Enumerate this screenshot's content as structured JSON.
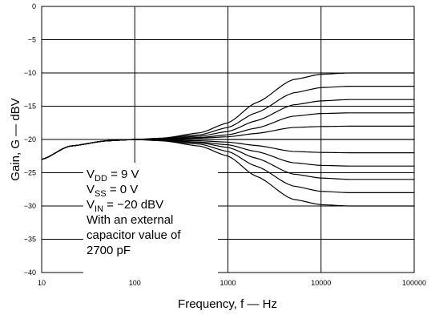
{
  "chart_data": {
    "type": "line",
    "title": "",
    "xlabel": "Frequency, f — Hz",
    "ylabel": "Gain, G — dBV",
    "xscale": "log",
    "xlim": [
      10,
      100000
    ],
    "ylim": [
      -40,
      0
    ],
    "x_ticks": [
      10,
      100,
      1000,
      10000,
      100000
    ],
    "x_tick_labels": [
      "10",
      "100",
      "1000",
      "10000",
      "100000"
    ],
    "y_ticks": [
      0,
      -5,
      -10,
      -15,
      -20,
      -25,
      -30,
      -35,
      -40
    ],
    "y_tick_labels": [
      "0",
      "−5",
      "−10",
      "−15",
      "−20",
      "−25",
      "−30",
      "−35",
      "−40"
    ],
    "grid": true,
    "series": [
      {
        "x": [
          10,
          20,
          50,
          100,
          200,
          500,
          1000,
          2000,
          5000,
          10000,
          20000,
          50000,
          100000
        ],
        "y": [
          -23,
          -21,
          -20.2,
          -20,
          -19.8,
          -19,
          -17.5,
          -14.5,
          -11,
          -10.2,
          -10,
          -10,
          -10
        ]
      },
      {
        "x": [
          10,
          20,
          50,
          100,
          200,
          500,
          1000,
          2000,
          5000,
          10000,
          20000,
          50000,
          100000
        ],
        "y": [
          -23,
          -21,
          -20.2,
          -20,
          -19.8,
          -19.3,
          -18.2,
          -16,
          -13,
          -12.2,
          -12,
          -12,
          -12
        ]
      },
      {
        "x": [
          10,
          20,
          50,
          100,
          200,
          500,
          1000,
          2000,
          5000,
          10000,
          20000,
          50000,
          100000
        ],
        "y": [
          -23,
          -21,
          -20.2,
          -20,
          -19.9,
          -19.5,
          -18.8,
          -17.2,
          -14.8,
          -14.2,
          -14,
          -14,
          -14
        ]
      },
      {
        "x": [
          10,
          20,
          50,
          100,
          200,
          500,
          1000,
          2000,
          5000,
          10000,
          20000,
          50000,
          100000
        ],
        "y": [
          -23,
          -21,
          -20.2,
          -20,
          -19.9,
          -19.7,
          -19.3,
          -18.3,
          -16.5,
          -16.1,
          -16,
          -16,
          -16
        ]
      },
      {
        "x": [
          10,
          20,
          50,
          100,
          200,
          500,
          1000,
          2000,
          5000,
          10000,
          20000,
          50000,
          100000
        ],
        "y": [
          -23,
          -21,
          -20.2,
          -20,
          -19.95,
          -19.8,
          -19.6,
          -19.1,
          -18.2,
          -18.05,
          -18,
          -18,
          -18
        ]
      },
      {
        "x": [
          10,
          20,
          50,
          100,
          200,
          500,
          1000,
          2000,
          5000,
          10000,
          20000,
          50000,
          100000
        ],
        "y": [
          -23,
          -21,
          -20.2,
          -20,
          -20,
          -20,
          -20,
          -20,
          -20,
          -20,
          -20,
          -20,
          -20
        ]
      },
      {
        "x": [
          10,
          20,
          50,
          100,
          200,
          500,
          1000,
          2000,
          5000,
          10000,
          20000,
          50000,
          100000
        ],
        "y": [
          -23,
          -21,
          -20.2,
          -20,
          -20.05,
          -20.2,
          -20.4,
          -20.9,
          -21.8,
          -21.95,
          -22,
          -22,
          -22
        ]
      },
      {
        "x": [
          10,
          20,
          50,
          100,
          200,
          500,
          1000,
          2000,
          5000,
          10000,
          20000,
          50000,
          100000
        ],
        "y": [
          -23,
          -21,
          -20.2,
          -20,
          -20.1,
          -20.4,
          -20.8,
          -21.8,
          -23.5,
          -23.9,
          -24,
          -24,
          -24
        ]
      },
      {
        "x": [
          10,
          20,
          50,
          100,
          200,
          500,
          1000,
          2000,
          5000,
          10000,
          20000,
          50000,
          100000
        ],
        "y": [
          -23,
          -21,
          -20.2,
          -20,
          -20.1,
          -20.5,
          -21.2,
          -22.8,
          -25.2,
          -25.8,
          -26,
          -26,
          -26
        ]
      },
      {
        "x": [
          10,
          20,
          50,
          100,
          200,
          500,
          1000,
          2000,
          5000,
          10000,
          20000,
          50000,
          100000
        ],
        "y": [
          -23,
          -21,
          -20.2,
          -20,
          -20.2,
          -20.7,
          -21.8,
          -24,
          -27,
          -27.8,
          -28,
          -28,
          -28
        ]
      },
      {
        "x": [
          10,
          20,
          50,
          100,
          200,
          500,
          1000,
          2000,
          5000,
          10000,
          20000,
          50000,
          100000
        ],
        "y": [
          -23,
          -21,
          -20.2,
          -20,
          -20.2,
          -21,
          -22.5,
          -25.5,
          -29,
          -29.8,
          -30,
          -30,
          -30
        ]
      }
    ],
    "annotation": {
      "line1_main": "V",
      "line1_sub": "DD",
      "line1_rest": " = 9 V",
      "line2_main": "V",
      "line2_sub": "SS",
      "line2_rest": " = 0 V",
      "line3_main": "V",
      "line3_sub": "IN",
      "line3_rest": " = −20 dBV",
      "line4": "With an external",
      "line5": "capacitor value of",
      "line6": "2700 pF"
    }
  }
}
